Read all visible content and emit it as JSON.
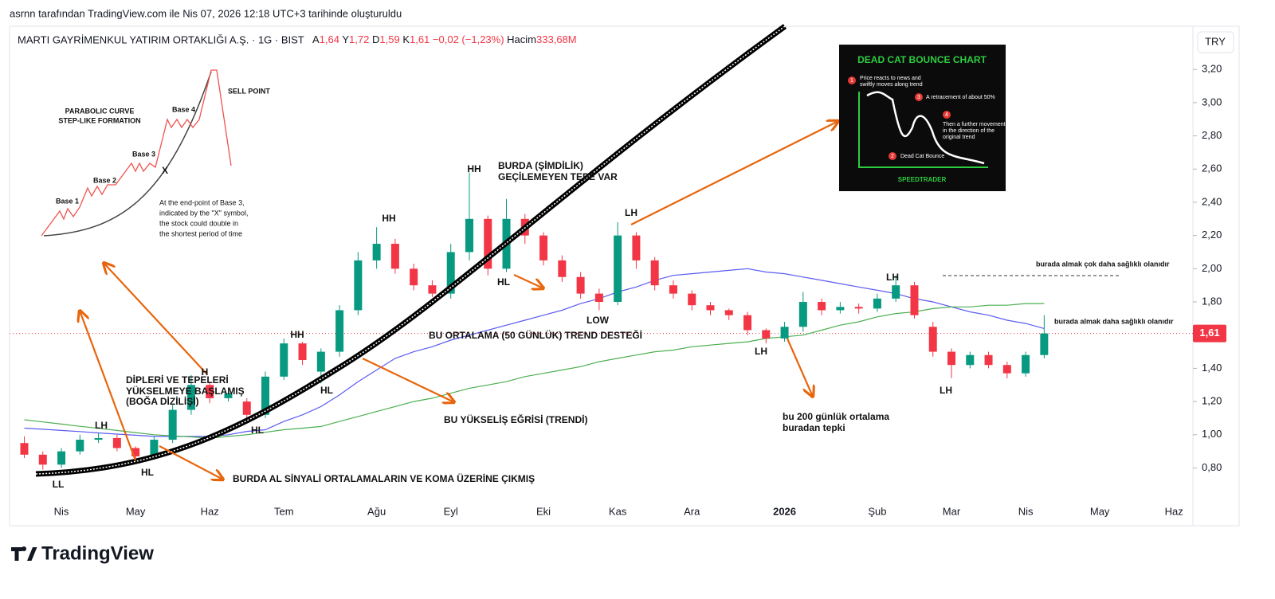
{
  "header": {
    "caption": "asrnn tarafından TradingView.com ile Nis 07, 2026 12:18 UTC+3 tarihinde oluşturuldu",
    "symbol": "MARTI GAYRİMENKUL YATIRIM ORTAKLIĞI A.Ş. · 1G · BIST",
    "quote": [
      {
        "label": "A",
        "value": "1,64"
      },
      {
        "label": "Y",
        "value": "1,72"
      },
      {
        "label": "D",
        "value": "1,59"
      },
      {
        "label": "K",
        "value": "1,61"
      }
    ],
    "change": "−0,02 (−1,23%)",
    "volume_label": "Hacim",
    "volume": "333,68M",
    "currency": "TRY"
  },
  "footer": {
    "brand": "TradingView"
  },
  "chart_data": {
    "type": "candlestick",
    "categories": [
      null,
      null,
      "Nis",
      null,
      null,
      null,
      "May",
      null,
      null,
      null,
      "Haz",
      null,
      null,
      null,
      "Tem",
      null,
      null,
      null,
      null,
      "Ağu",
      null,
      null,
      null,
      "Eyl",
      null,
      null,
      null,
      null,
      "Eki",
      null,
      null,
      null,
      "Kas",
      null,
      null,
      null,
      "Ara",
      null,
      null,
      null,
      null,
      "2026",
      null,
      null,
      null,
      null,
      "Şub",
      null,
      null,
      null,
      "Mar",
      null,
      null,
      null,
      "Nis",
      null,
      null,
      null,
      "May",
      null,
      null,
      null,
      "Haz",
      null
    ],
    "open": [
      0.95,
      0.88,
      0.82,
      0.9,
      0.97,
      0.98,
      0.92,
      0.87,
      0.97,
      1.15,
      1.3,
      1.22,
      1.2,
      1.12,
      1.35,
      1.55,
      1.38,
      1.5,
      1.75,
      2.05,
      2.15,
      2.0,
      1.9,
      1.85,
      2.1,
      2.3,
      2.0,
      2.3,
      2.2,
      2.05,
      1.95,
      1.85,
      1.8,
      2.2,
      2.05,
      1.9,
      1.85,
      1.78,
      1.75,
      1.72,
      1.63,
      1.58,
      1.65,
      1.8,
      1.75,
      1.77,
      1.76,
      1.82,
      1.9,
      1.65,
      1.5,
      1.42,
      1.48,
      1.42,
      1.37,
      1.48,
      null,
      null,
      null,
      null,
      null,
      null,
      null,
      null
    ],
    "high": [
      0.99,
      0.9,
      0.92,
      1.0,
      1.01,
      1.0,
      0.93,
      0.99,
      1.18,
      1.36,
      1.32,
      1.28,
      1.22,
      1.38,
      1.58,
      1.56,
      1.52,
      1.78,
      2.1,
      2.25,
      2.18,
      2.03,
      1.93,
      2.15,
      2.58,
      2.32,
      2.42,
      2.33,
      2.22,
      2.08,
      1.98,
      1.88,
      2.28,
      2.22,
      2.07,
      1.93,
      1.87,
      1.8,
      1.76,
      1.74,
      1.64,
      1.68,
      1.86,
      1.82,
      1.8,
      1.79,
      1.85,
      1.96,
      1.92,
      1.68,
      1.52,
      1.5,
      1.5,
      1.44,
      1.5,
      1.72,
      null,
      null,
      null,
      null,
      null,
      null,
      null,
      null
    ],
    "low": [
      0.86,
      0.79,
      0.8,
      0.88,
      0.95,
      0.9,
      0.84,
      0.85,
      0.95,
      1.12,
      1.19,
      1.2,
      1.1,
      1.1,
      1.33,
      1.42,
      1.31,
      1.47,
      1.72,
      2.0,
      1.97,
      1.87,
      1.83,
      1.82,
      2.05,
      1.96,
      1.98,
      2.15,
      2.02,
      1.92,
      1.82,
      1.75,
      1.78,
      2.0,
      1.87,
      1.82,
      1.75,
      1.72,
      1.69,
      1.6,
      1.55,
      1.56,
      1.62,
      1.72,
      1.73,
      1.73,
      1.74,
      1.8,
      1.7,
      1.47,
      1.34,
      1.4,
      1.4,
      1.34,
      1.35,
      1.46,
      null,
      null,
      null,
      null,
      null,
      null,
      null,
      null
    ],
    "close": [
      0.88,
      0.82,
      0.9,
      0.97,
      0.98,
      0.92,
      0.87,
      0.97,
      1.15,
      1.3,
      1.22,
      1.25,
      1.12,
      1.35,
      1.55,
      1.45,
      1.5,
      1.75,
      2.05,
      2.15,
      2.0,
      1.9,
      1.85,
      2.1,
      2.3,
      2.0,
      2.3,
      2.2,
      2.05,
      1.95,
      1.85,
      1.8,
      2.2,
      2.05,
      1.9,
      1.85,
      1.78,
      1.75,
      1.72,
      1.63,
      1.58,
      1.65,
      1.8,
      1.75,
      1.77,
      1.76,
      1.82,
      1.9,
      1.72,
      1.5,
      1.42,
      1.48,
      1.42,
      1.37,
      1.48,
      1.61,
      null,
      null,
      null,
      null,
      null,
      null,
      null,
      null
    ],
    "up_color": "#089981",
    "down_color": "#f23645",
    "lines": [
      {
        "color": "#5b5bf0",
        "values": [
          1.04,
          1.033,
          1.026,
          1.019,
          1.011,
          1.004,
          0.997,
          0.99,
          0.99,
          0.99,
          0.99,
          1.0,
          1.02,
          1.03,
          1.08,
          1.12,
          1.17,
          1.24,
          1.32,
          1.39,
          1.46,
          1.5,
          1.53,
          1.57,
          1.6,
          1.63,
          1.66,
          1.69,
          1.72,
          1.75,
          1.79,
          1.82,
          1.86,
          1.89,
          1.93,
          1.96,
          1.97,
          1.98,
          1.99,
          2.0,
          1.98,
          1.97,
          1.95,
          1.93,
          1.91,
          1.89,
          1.87,
          1.85,
          1.82,
          1.8,
          1.77,
          1.74,
          1.72,
          1.69,
          1.67,
          1.64,
          null,
          null,
          null,
          null,
          null,
          null,
          null,
          null
        ]
      },
      {
        "color": "#4caf50",
        "values": [
          1.09,
          1.077,
          1.064,
          1.051,
          1.039,
          1.026,
          1.013,
          1.0,
          0.993,
          0.987,
          0.98,
          0.99,
          1.0,
          1.015,
          1.03,
          1.04,
          1.05,
          1.08,
          1.11,
          1.14,
          1.17,
          1.2,
          1.22,
          1.25,
          1.28,
          1.3,
          1.32,
          1.35,
          1.37,
          1.39,
          1.41,
          1.44,
          1.46,
          1.48,
          1.5,
          1.51,
          1.53,
          1.54,
          1.55,
          1.56,
          1.58,
          1.59,
          1.6,
          1.63,
          1.66,
          1.68,
          1.71,
          1.73,
          1.74,
          1.76,
          1.77,
          1.77,
          1.78,
          1.78,
          1.79,
          1.79,
          null,
          null,
          null,
          null,
          null,
          null,
          null,
          null
        ]
      }
    ],
    "last_price": {
      "value": 1.61,
      "label": "1,61"
    },
    "ylim": [
      0.62,
      3.46
    ],
    "yticks": [
      {
        "value": 0.8,
        "label": "0,80"
      },
      {
        "value": 1.0,
        "label": "1,00"
      },
      {
        "value": 1.2,
        "label": "1,20"
      },
      {
        "value": 1.4,
        "label": "1,40"
      },
      {
        "value": 1.6,
        "label": "1,60"
      },
      {
        "value": 1.8,
        "label": "1,80"
      },
      {
        "value": 2.0,
        "label": "2,00"
      },
      {
        "value": 2.2,
        "label": "2,20"
      },
      {
        "value": 2.4,
        "label": "2,40"
      },
      {
        "value": 2.6,
        "label": "2,60"
      },
      {
        "value": 2.8,
        "label": "2,80"
      },
      {
        "value": 3.0,
        "label": "3,00"
      },
      {
        "value": 3.2,
        "label": "3,20"
      }
    ],
    "annotations": [
      "LL",
      "LH",
      "HL",
      "H",
      "DİPLERİ VE TEPELERİ",
      "YÜKSELMEYE BAŞLAMIŞ",
      "(BOĞA DİZİLİŞİ)",
      "HL",
      "HH",
      "HL",
      "HH",
      "HH",
      "HL",
      "BURDA (ŞİMDİLİK)",
      "GEÇİLEMEYEN TEPE VAR",
      "LOW",
      "LH",
      "BU ORTALAMA  (50 GÜNLÜK) TREND DESTEĞİ",
      "BU YÜKSELİŞ EĞRİSİ (TRENDİ)",
      "BURDA AL SİNYALİ ORTALAMALARIN VE KOMA ÜZERİNE ÇIKMIŞ",
      "LH",
      "bu 200 günlük ortalama",
      "buradan tepki",
      "LH",
      "LH",
      "burada almak çok daha sağlıklı olanıdır",
      "burada almak daha sağlıklı olanıdır"
    ]
  },
  "insets": {
    "parabolic": {
      "title": [
        "PARABOLIC CURVE",
        "STEP-LIKE FORMATION"
      ],
      "bases": [
        "Base 1",
        "Base 2",
        "Base 3",
        "Base 4"
      ],
      "sell": "SELL POINT",
      "marker": "X",
      "note": [
        "At the end-point of Base 3,",
        "indicated by the \"X\" symbol,",
        "the stock could double in",
        "the shortest period of time"
      ]
    },
    "dead_cat": {
      "title": "DEAD CAT BOUNCE CHART",
      "steps": [
        "1",
        "2",
        "3",
        "4"
      ],
      "step1": [
        "Price reacts to news and",
        "swiftly moves along trend"
      ],
      "step2": "Dead Cat Bounce",
      "step3": "A retracement of about 50%",
      "step4": [
        "Then a further movement",
        "in the direction of the",
        "original trend"
      ],
      "brand": "SPEEDTRADER"
    }
  }
}
